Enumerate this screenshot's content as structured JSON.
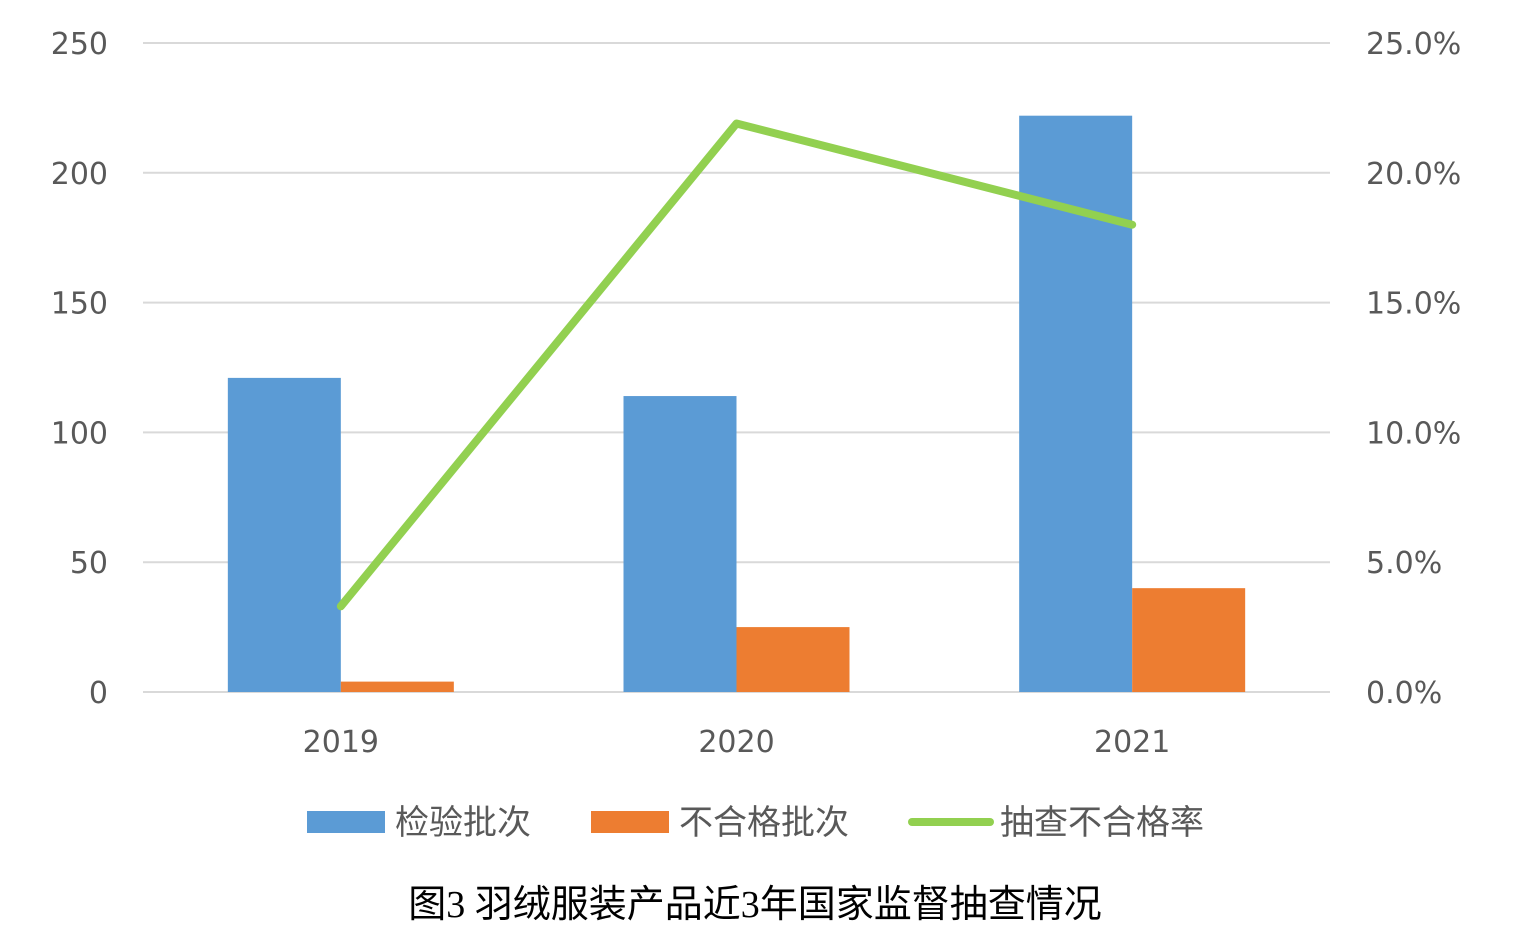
{
  "chart_data": {
    "type": "bar",
    "categories": [
      "2019",
      "2020",
      "2021"
    ],
    "series": [
      {
        "name": "检验批次",
        "type": "bar",
        "axis": "left",
        "color": "#5B9BD5",
        "values": [
          121,
          114,
          222
        ]
      },
      {
        "name": "不合格批次",
        "type": "bar",
        "axis": "left",
        "color": "#ED7D31",
        "values": [
          4,
          25,
          40
        ]
      },
      {
        "name": "抽查不合格率",
        "type": "line",
        "axis": "right",
        "color": "#92D050",
        "values": [
          3.3,
          21.9,
          18.0
        ]
      }
    ],
    "ylim": [
      0,
      250
    ],
    "y_ticks": [
      "0",
      "50",
      "100",
      "150",
      "200",
      "250"
    ],
    "y2lim": [
      0,
      25
    ],
    "y2_ticks": [
      "0.0%",
      "5.0%",
      "10.0%",
      "15.0%",
      "20.0%",
      "25.0%"
    ],
    "grid": true,
    "legend_position": "bottom",
    "caption": "图3 羽绒服装产品近3年国家监督抽查情况"
  }
}
